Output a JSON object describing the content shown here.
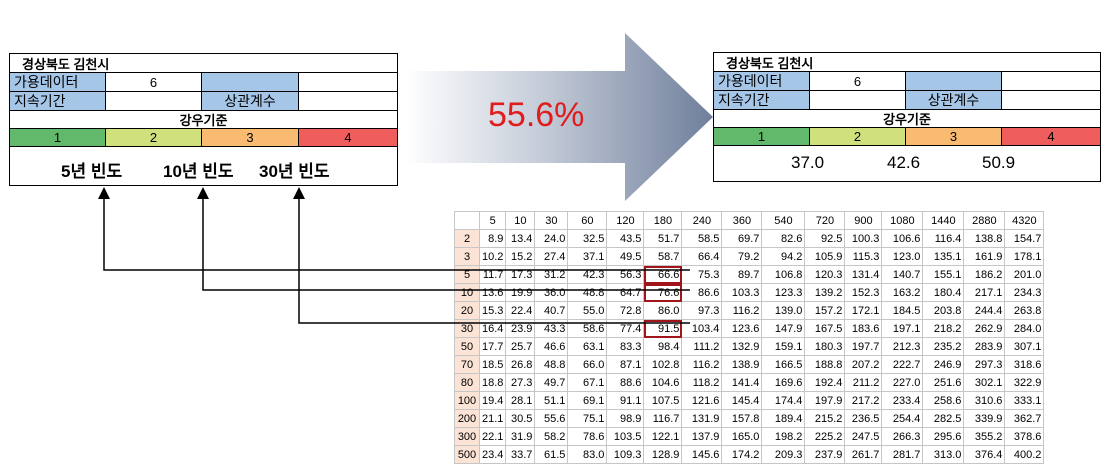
{
  "left_panel": {
    "title": "경상북도 김천시",
    "available_data_label": "가용데이터",
    "available_data_value": "6",
    "duration_label": "지속기간",
    "correlation_label": "상관계수",
    "rainfall_criteria_label": "강우기준",
    "levels": [
      "1",
      "2",
      "3",
      "4"
    ],
    "frequencies": [
      "5년 빈도",
      "10년 빈도",
      "30년 빈도"
    ]
  },
  "right_panel": {
    "title": "경상북도 김천시",
    "available_data_label": "가용데이터",
    "available_data_value": "6",
    "duration_label": "지속기간",
    "correlation_label": "상관계수",
    "rainfall_criteria_label": "강우기준",
    "levels": [
      "1",
      "2",
      "3",
      "4"
    ],
    "values": [
      "37.0",
      "42.6",
      "50.9"
    ]
  },
  "arrow": {
    "percent": "55.6%"
  },
  "colors": {
    "level1": "#63b96b",
    "level2": "#cfe07d",
    "level3": "#f9bb72",
    "level4": "#ef5d5d",
    "header_blue": "#a6c6e8",
    "percent": "#e01c1c",
    "highlight": "#a0141c"
  },
  "table": {
    "columns": [
      "5",
      "10",
      "30",
      "60",
      "120",
      "180",
      "240",
      "360",
      "540",
      "720",
      "900",
      "1080",
      "1440",
      "2880",
      "4320"
    ],
    "rows": [
      {
        "label": "2",
        "values": [
          "8.9",
          "13.4",
          "24.0",
          "32.5",
          "43.5",
          "51.7",
          "58.5",
          "69.7",
          "82.6",
          "92.5",
          "100.3",
          "106.6",
          "116.4",
          "138.8",
          "154.7"
        ]
      },
      {
        "label": "3",
        "values": [
          "10.2",
          "15.2",
          "27.4",
          "37.1",
          "49.5",
          "58.7",
          "66.4",
          "79.2",
          "94.2",
          "105.9",
          "115.3",
          "123.0",
          "135.1",
          "161.9",
          "178.1"
        ]
      },
      {
        "label": "5",
        "values": [
          "11.7",
          "17.3",
          "31.2",
          "42.3",
          "56.3",
          "66.6",
          "75.3",
          "89.7",
          "106.8",
          "120.3",
          "131.4",
          "140.7",
          "155.1",
          "186.2",
          "201.0"
        ]
      },
      {
        "label": "10",
        "values": [
          "13.6",
          "19.9",
          "36.0",
          "48.8",
          "64.7",
          "76.6",
          "86.6",
          "103.3",
          "123.3",
          "139.2",
          "152.3",
          "163.2",
          "180.4",
          "217.1",
          "234.3"
        ]
      },
      {
        "label": "20",
        "values": [
          "15.3",
          "22.4",
          "40.7",
          "55.0",
          "72.8",
          "86.0",
          "97.3",
          "116.2",
          "139.0",
          "157.2",
          "172.1",
          "184.5",
          "203.8",
          "244.4",
          "263.8"
        ]
      },
      {
        "label": "30",
        "values": [
          "16.4",
          "23.9",
          "43.3",
          "58.6",
          "77.4",
          "91.5",
          "103.4",
          "123.6",
          "147.9",
          "167.5",
          "183.6",
          "197.1",
          "218.2",
          "262.9",
          "284.0"
        ]
      },
      {
        "label": "50",
        "values": [
          "17.7",
          "25.7",
          "46.6",
          "63.1",
          "83.3",
          "98.4",
          "111.2",
          "132.9",
          "159.1",
          "180.3",
          "197.7",
          "212.3",
          "235.2",
          "283.9",
          "307.1"
        ]
      },
      {
        "label": "70",
        "values": [
          "18.5",
          "26.8",
          "48.8",
          "66.0",
          "87.1",
          "102.8",
          "116.2",
          "138.9",
          "166.5",
          "188.8",
          "207.2",
          "222.7",
          "246.9",
          "297.3",
          "318.6"
        ]
      },
      {
        "label": "80",
        "values": [
          "18.8",
          "27.3",
          "49.7",
          "67.1",
          "88.6",
          "104.6",
          "118.2",
          "141.4",
          "169.6",
          "192.4",
          "211.2",
          "227.0",
          "251.6",
          "302.1",
          "322.9"
        ]
      },
      {
        "label": "100",
        "values": [
          "19.4",
          "28.1",
          "51.1",
          "69.1",
          "91.1",
          "107.5",
          "121.6",
          "145.4",
          "174.4",
          "197.9",
          "217.2",
          "233.4",
          "258.6",
          "310.6",
          "333.1"
        ]
      },
      {
        "label": "200",
        "values": [
          "21.1",
          "30.5",
          "55.6",
          "75.1",
          "98.9",
          "116.7",
          "131.9",
          "157.8",
          "189.4",
          "215.2",
          "236.5",
          "254.4",
          "282.5",
          "339.9",
          "362.7"
        ]
      },
      {
        "label": "300",
        "values": [
          "22.1",
          "31.9",
          "58.2",
          "78.6",
          "103.5",
          "122.1",
          "137.9",
          "165.0",
          "198.2",
          "225.2",
          "247.5",
          "266.3",
          "295.6",
          "355.2",
          "378.6"
        ]
      },
      {
        "label": "500",
        "values": [
          "23.4",
          "33.7",
          "61.5",
          "83.0",
          "109.3",
          "128.9",
          "145.6",
          "174.2",
          "209.3",
          "237.9",
          "261.7",
          "281.7",
          "313.0",
          "376.4",
          "400.2"
        ]
      }
    ],
    "highlighted": [
      {
        "row": 2,
        "col": 5
      },
      {
        "row": 3,
        "col": 5
      },
      {
        "row": 5,
        "col": 5
      }
    ]
  }
}
